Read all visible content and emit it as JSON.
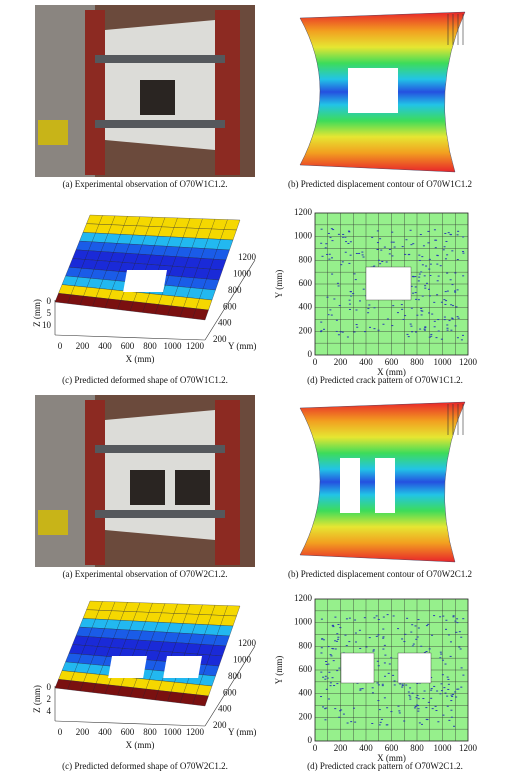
{
  "figures": [
    {
      "photo_caption": "(a) Experimental observation of O70W1C1.2.",
      "contour_caption": "(b) Predicted displacement contour of O70W1C1.2",
      "shape": {
        "caption": "(c) Predicted deformed shape of O70W1C1.2.",
        "z_label": "Z (mm)",
        "z_ticks": [
          "0",
          "5",
          "10"
        ],
        "x_label": "X (mm)",
        "x_ticks": [
          "0",
          "200",
          "400",
          "600",
          "800",
          "1000",
          "1200"
        ],
        "y_label": "Y (mm)",
        "y_ticks": [
          "200",
          "400",
          "600",
          "800",
          "1000",
          "1200"
        ]
      },
      "crack": {
        "caption": "(d) Predicted crack pattern of O70W1C1.2.",
        "x_label": "X (mm)",
        "y_label": "Y (mm)",
        "x_ticks": [
          "0",
          "200",
          "400",
          "600",
          "800",
          "1000",
          "1200"
        ],
        "y_ticks": [
          "0",
          "200",
          "400",
          "600",
          "800",
          "1000",
          "1200"
        ]
      }
    },
    {
      "photo_caption": "(a) Experimental observation of O70W2C1.2.",
      "contour_caption": "(b) Predicted displacement contour of O70W2C1.2",
      "shape": {
        "caption": "(c) Predicted deformed shape of O70W2C1.2.",
        "z_label": "Z (mm)",
        "z_ticks": [
          "0",
          "2",
          "4"
        ],
        "x_label": "X (mm)",
        "x_ticks": [
          "0",
          "200",
          "400",
          "600",
          "800",
          "1000",
          "1200"
        ],
        "y_label": "Y (mm)",
        "y_ticks": [
          "200",
          "400",
          "600",
          "800",
          "1000",
          "1200"
        ]
      },
      "crack": {
        "caption": "(d) Predicted crack pattern of O70W2C1.2.",
        "x_label": "X (mm)",
        "y_label": "Y (mm)",
        "x_ticks": [
          "0",
          "200",
          "400",
          "600",
          "800",
          "1000",
          "1200"
        ],
        "y_ticks": [
          "0",
          "200",
          "400",
          "600",
          "800",
          "1000",
          "1200"
        ]
      }
    }
  ]
}
